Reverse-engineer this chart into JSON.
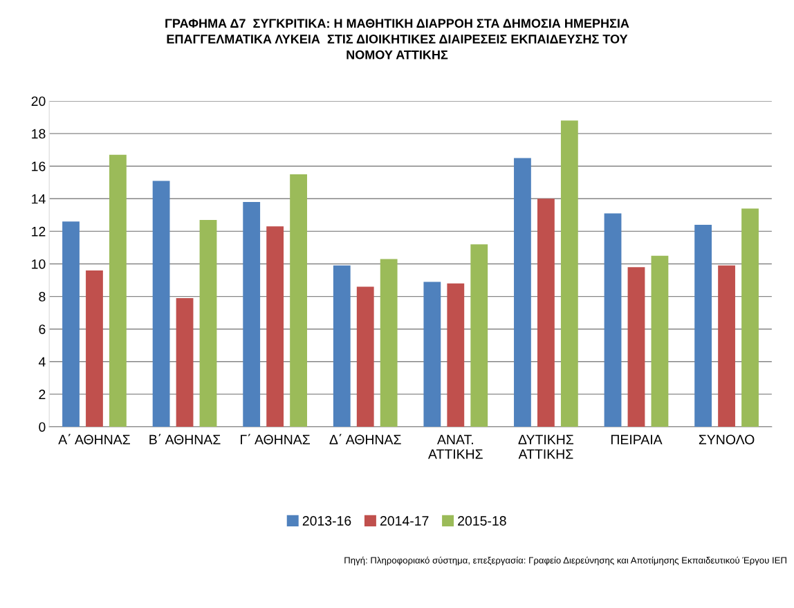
{
  "chart_data": {
    "type": "bar",
    "title": "ΓΡΑΦΗΜΑ Δ7  ΣΥΓΚΡΙΤΙΚΑ: Η ΜΑΘΗΤΙΚΗ ΔΙΑΡΡΟΗ ΣΤΑ ΔΗΜΟΣΙΑ ΗΜΕΡΗΣΙΑ\nΕΠΑΓΓΕΛΜΑΤΙΚΑ ΛΥΚΕΙΑ  ΣΤΙΣ ΔΙΟΙΚΗΤΙΚΕΣ ΔΙΑΙΡΕΣΕΙΣ ΕΚΠΑΙΔΕΥΣΗΣ ΤΟΥ\nΝΟΜΟΥ ΑΤΤΙΚΗΣ",
    "categories": [
      "Α΄ ΑΘΗΝΑΣ",
      "Β΄ ΑΘΗΝΑΣ",
      "Γ΄ ΑΘΗΝΑΣ",
      "Δ΄ ΑΘΗΝΑΣ",
      "ΑΝΑΤ.\nΑΤΤΙΚΗΣ",
      "ΔΥΤΙΚΗΣ\nΑΤΤΙΚΗΣ",
      "ΠΕΙΡΑΙΑ",
      "ΣΥΝΟΛΟ"
    ],
    "series": [
      {
        "name": "2013-16",
        "color": "#4f81bd",
        "values": [
          12.6,
          15.1,
          13.8,
          9.9,
          8.9,
          16.5,
          13.1,
          12.4
        ]
      },
      {
        "name": "2014-17",
        "color": "#c0504d",
        "values": [
          9.6,
          7.9,
          12.3,
          8.6,
          8.8,
          14.0,
          9.8,
          9.9
        ]
      },
      {
        "name": "2015-18",
        "color": "#9bbb59",
        "values": [
          16.7,
          12.7,
          15.5,
          10.3,
          11.2,
          18.8,
          10.5,
          13.4
        ]
      }
    ],
    "ylim": [
      0,
      20
    ],
    "yticks": [
      0,
      2,
      4,
      6,
      8,
      10,
      12,
      14,
      16,
      18,
      20
    ],
    "grid": "y",
    "legend": "bottom",
    "annotations": [
      "Πηγή: Πληροφοριακό σύστημα, επεξεργασία: Γραφείο Διερεύνησης και Αποτίμησης Εκπαιδευτικού Έργου ΙΕΠ"
    ]
  }
}
